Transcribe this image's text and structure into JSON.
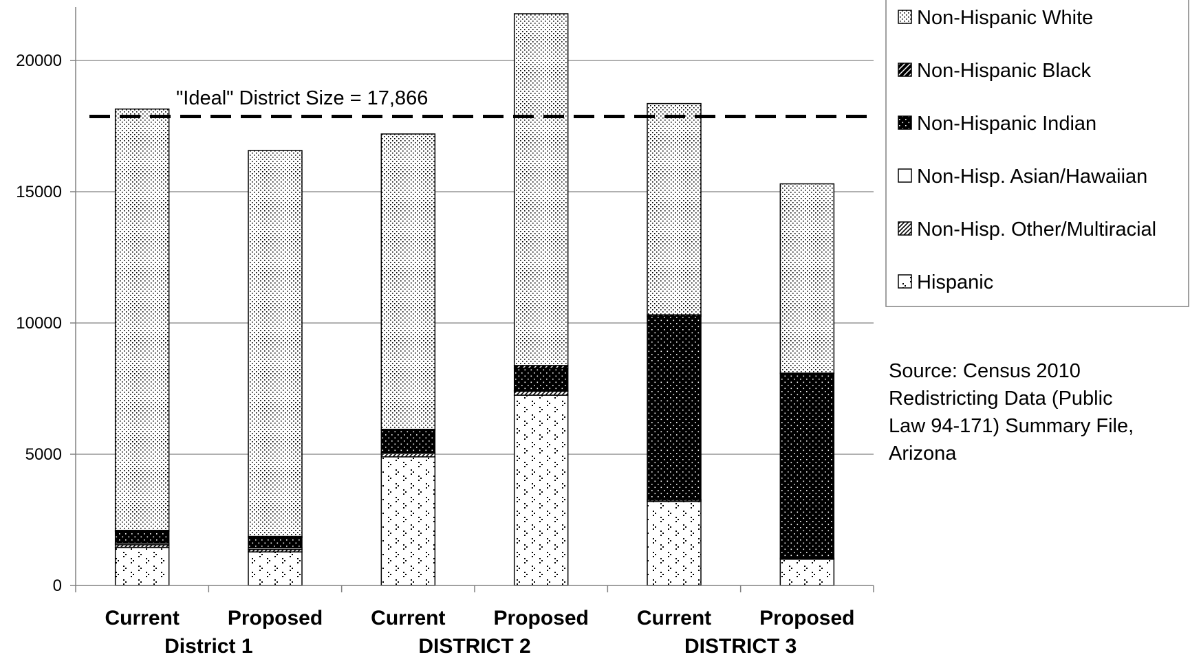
{
  "chart_data": {
    "type": "bar",
    "stacked": true,
    "categories": [
      "Current",
      "Proposed",
      "Current",
      "Proposed",
      "Current",
      "Proposed"
    ],
    "groups": [
      {
        "label": "District 1",
        "categories": [
          0,
          1
        ]
      },
      {
        "label": "DISTRICT 2",
        "categories": [
          2,
          3
        ]
      },
      {
        "label": "DISTRICT 3",
        "categories": [
          4,
          5
        ]
      }
    ],
    "series": [
      {
        "name": "Hispanic",
        "pattern": "hispanic",
        "values": [
          1450,
          1280,
          4900,
          7250,
          3200,
          1000
        ]
      },
      {
        "name": "Non-Hisp. Other/Multiracial",
        "pattern": "other",
        "values": [
          100,
          90,
          120,
          150,
          50,
          30
        ]
      },
      {
        "name": "Non-Hisp. Asian/Hawaiian",
        "pattern": "asian",
        "values": [
          60,
          60,
          50,
          30,
          10,
          10
        ]
      },
      {
        "name": "Non-Hispanic Indian",
        "pattern": "indian",
        "values": [
          450,
          400,
          850,
          850,
          7000,
          7030
        ]
      },
      {
        "name": "Non-Hispanic Black",
        "pattern": "black",
        "values": [
          40,
          40,
          30,
          100,
          50,
          20
        ]
      },
      {
        "name": "Non-Hispanic White",
        "pattern": "white",
        "values": [
          16050,
          14700,
          11250,
          13400,
          8050,
          7210
        ]
      }
    ],
    "legend_order": [
      "Non-Hispanic White",
      "Non-Hispanic Black",
      "Non-Hispanic Indian",
      "Non-Hisp. Asian/Hawaiian",
      "Non-Hisp. Other/Multiracial",
      "Hispanic"
    ],
    "ylim": [
      0,
      22000
    ],
    "yticks": [
      0,
      5000,
      10000,
      15000,
      20000
    ],
    "grid": true,
    "legend_position": "top-right",
    "reference_line": {
      "value": 17866,
      "label": "\"Ideal\" District Size = 17,866",
      "style": "dashed"
    },
    "source_text": [
      "Source:  Census 2010",
      "Redistricting Data (Public",
      "Law 94-171) Summary File,",
      "Arizona"
    ]
  }
}
